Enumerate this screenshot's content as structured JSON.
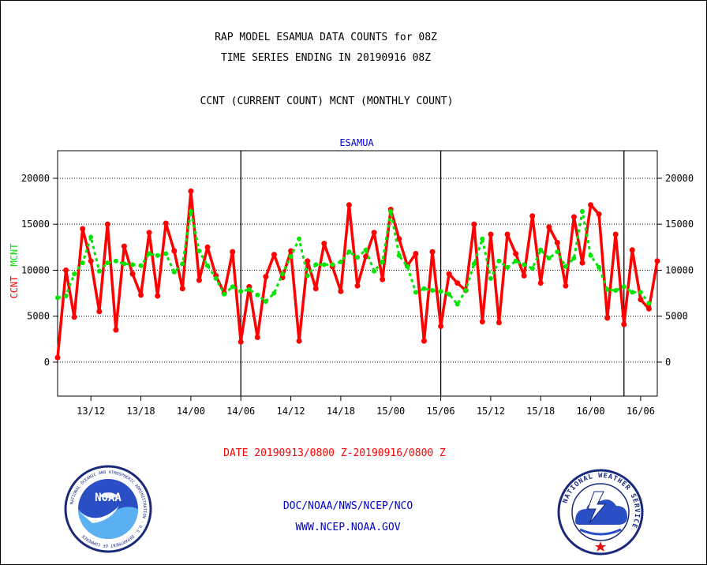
{
  "header": {
    "title_line1": "RAP MODEL ESAMUA DATA COUNTS for 08Z",
    "title_line2": "TIME SERIES ENDING IN 20190916 08Z",
    "subtitle": "CCNT (CURRENT COUNT) MCNT (MONTHLY COUNT)"
  },
  "footer": {
    "date_range": "DATE 20190913/0800 Z-20190916/0800 Z",
    "org": "DOC/NOAA/NWS/NCEP/NCO",
    "url": "WWW.NCEP.NOAA.GOV"
  },
  "logos": {
    "left": "NOAA",
    "left_ring": "NATIONAL OCEANIC AND ATMOSPHERIC ADMINISTRATION · U.S. DEPARTMENT OF COMMERCE",
    "right_ring": "NATIONAL WEATHER SERVICE"
  },
  "colors": {
    "ccnt": "#ff0000",
    "mcnt": "#00e600",
    "title_blue": "#0000cc",
    "axis": "#000000"
  },
  "chart_data": {
    "type": "line",
    "title": "ESAMUA",
    "ylabel_left": "CCNT",
    "ylabel_right": "MCNT",
    "ylim": [
      -3700,
      23000
    ],
    "yticks": [
      0,
      5000,
      10000,
      15000,
      20000
    ],
    "xlim": [
      -3,
      69
    ],
    "xticks": [
      {
        "x": 1,
        "label": "13/12"
      },
      {
        "x": 7,
        "label": "13/18"
      },
      {
        "x": 13,
        "label": "14/00"
      },
      {
        "x": 19,
        "label": "14/06"
      },
      {
        "x": 25,
        "label": "14/12"
      },
      {
        "x": 31,
        "label": "14/18"
      },
      {
        "x": 37,
        "label": "15/00"
      },
      {
        "x": 43,
        "label": "15/06"
      },
      {
        "x": 49,
        "label": "15/12"
      },
      {
        "x": 55,
        "label": "15/18"
      },
      {
        "x": 61,
        "label": "16/00"
      },
      {
        "x": 67,
        "label": "16/06"
      }
    ],
    "day_dividers": [
      19,
      43,
      65
    ],
    "grid": true,
    "series": [
      {
        "name": "CCNT",
        "color": "#ff0000",
        "start_x": -3,
        "values": [
          500,
          10000,
          4900,
          14500,
          11000,
          5500,
          15000,
          3500,
          12600,
          9600,
          7300,
          14100,
          7200,
          15100,
          12100,
          8000,
          18600,
          8900,
          12500,
          9400,
          7500,
          12000,
          2200,
          8200,
          2700,
          9300,
          11700,
          9200,
          12100,
          2300,
          11000,
          8000,
          12900,
          10400,
          7700,
          17100,
          8300,
          11500,
          14100,
          9000,
          16600,
          13400,
          10500,
          11800,
          2300,
          12000,
          3900,
          9600,
          8600,
          7800,
          15000,
          4400,
          13900,
          4300,
          13900,
          11800,
          9400,
          15900,
          8600,
          14700,
          13000,
          8300,
          15800,
          10800,
          17100,
          16100,
          4800,
          13900,
          4100,
          12200,
          6800,
          5800,
          11000
        ]
      },
      {
        "name": "MCNT",
        "color": "#00e600",
        "start_x": -3,
        "values": [
          7000,
          7200,
          9600,
          10800,
          13600,
          9900,
          10800,
          11000,
          10700,
          10600,
          10500,
          11800,
          11600,
          11800,
          9800,
          10700,
          16400,
          12100,
          10500,
          9100,
          7400,
          8200,
          7700,
          7900,
          7300,
          6600,
          7500,
          9600,
          11500,
          13400,
          9400,
          10600,
          10600,
          10600,
          10900,
          12000,
          11400,
          12200,
          9900,
          10900,
          16400,
          11600,
          10400,
          7600,
          8000,
          7800,
          7700,
          7400,
          6300,
          7800,
          10700,
          13400,
          9100,
          11000,
          10300,
          11000,
          10600,
          10200,
          12200,
          11300,
          12000,
          10400,
          11300,
          16400,
          11600,
          10300,
          7900,
          7800,
          8200,
          7600,
          7600,
          6400
        ]
      }
    ]
  }
}
